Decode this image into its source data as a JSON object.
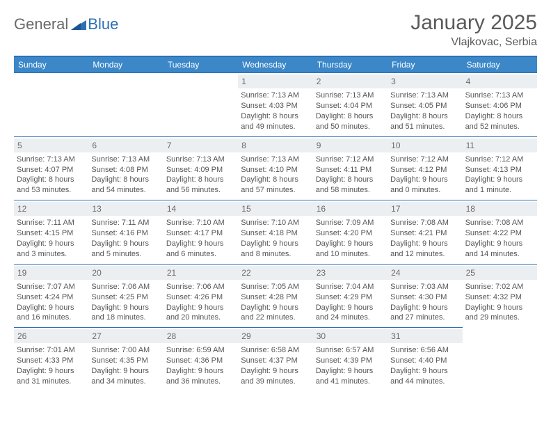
{
  "logo": {
    "general": "General",
    "blue": "Blue"
  },
  "title": "January 2025",
  "location": "Vlajkovac, Serbia",
  "colors": {
    "header_bar": "#3b87c8",
    "rule": "#2e6fb5",
    "daynum_bg": "#eceff1",
    "text": "#555555",
    "title_text": "#5a5a5a"
  },
  "day_headers": [
    "Sunday",
    "Monday",
    "Tuesday",
    "Wednesday",
    "Thursday",
    "Friday",
    "Saturday"
  ],
  "leading_blanks": 3,
  "days": [
    {
      "n": "1",
      "sunrise": "Sunrise: 7:13 AM",
      "sunset": "Sunset: 4:03 PM",
      "dl1": "Daylight: 8 hours",
      "dl2": "and 49 minutes."
    },
    {
      "n": "2",
      "sunrise": "Sunrise: 7:13 AM",
      "sunset": "Sunset: 4:04 PM",
      "dl1": "Daylight: 8 hours",
      "dl2": "and 50 minutes."
    },
    {
      "n": "3",
      "sunrise": "Sunrise: 7:13 AM",
      "sunset": "Sunset: 4:05 PM",
      "dl1": "Daylight: 8 hours",
      "dl2": "and 51 minutes."
    },
    {
      "n": "4",
      "sunrise": "Sunrise: 7:13 AM",
      "sunset": "Sunset: 4:06 PM",
      "dl1": "Daylight: 8 hours",
      "dl2": "and 52 minutes."
    },
    {
      "n": "5",
      "sunrise": "Sunrise: 7:13 AM",
      "sunset": "Sunset: 4:07 PM",
      "dl1": "Daylight: 8 hours",
      "dl2": "and 53 minutes."
    },
    {
      "n": "6",
      "sunrise": "Sunrise: 7:13 AM",
      "sunset": "Sunset: 4:08 PM",
      "dl1": "Daylight: 8 hours",
      "dl2": "and 54 minutes."
    },
    {
      "n": "7",
      "sunrise": "Sunrise: 7:13 AM",
      "sunset": "Sunset: 4:09 PM",
      "dl1": "Daylight: 8 hours",
      "dl2": "and 56 minutes."
    },
    {
      "n": "8",
      "sunrise": "Sunrise: 7:13 AM",
      "sunset": "Sunset: 4:10 PM",
      "dl1": "Daylight: 8 hours",
      "dl2": "and 57 minutes."
    },
    {
      "n": "9",
      "sunrise": "Sunrise: 7:12 AM",
      "sunset": "Sunset: 4:11 PM",
      "dl1": "Daylight: 8 hours",
      "dl2": "and 58 minutes."
    },
    {
      "n": "10",
      "sunrise": "Sunrise: 7:12 AM",
      "sunset": "Sunset: 4:12 PM",
      "dl1": "Daylight: 9 hours",
      "dl2": "and 0 minutes."
    },
    {
      "n": "11",
      "sunrise": "Sunrise: 7:12 AM",
      "sunset": "Sunset: 4:13 PM",
      "dl1": "Daylight: 9 hours",
      "dl2": "and 1 minute."
    },
    {
      "n": "12",
      "sunrise": "Sunrise: 7:11 AM",
      "sunset": "Sunset: 4:15 PM",
      "dl1": "Daylight: 9 hours",
      "dl2": "and 3 minutes."
    },
    {
      "n": "13",
      "sunrise": "Sunrise: 7:11 AM",
      "sunset": "Sunset: 4:16 PM",
      "dl1": "Daylight: 9 hours",
      "dl2": "and 5 minutes."
    },
    {
      "n": "14",
      "sunrise": "Sunrise: 7:10 AM",
      "sunset": "Sunset: 4:17 PM",
      "dl1": "Daylight: 9 hours",
      "dl2": "and 6 minutes."
    },
    {
      "n": "15",
      "sunrise": "Sunrise: 7:10 AM",
      "sunset": "Sunset: 4:18 PM",
      "dl1": "Daylight: 9 hours",
      "dl2": "and 8 minutes."
    },
    {
      "n": "16",
      "sunrise": "Sunrise: 7:09 AM",
      "sunset": "Sunset: 4:20 PM",
      "dl1": "Daylight: 9 hours",
      "dl2": "and 10 minutes."
    },
    {
      "n": "17",
      "sunrise": "Sunrise: 7:08 AM",
      "sunset": "Sunset: 4:21 PM",
      "dl1": "Daylight: 9 hours",
      "dl2": "and 12 minutes."
    },
    {
      "n": "18",
      "sunrise": "Sunrise: 7:08 AM",
      "sunset": "Sunset: 4:22 PM",
      "dl1": "Daylight: 9 hours",
      "dl2": "and 14 minutes."
    },
    {
      "n": "19",
      "sunrise": "Sunrise: 7:07 AM",
      "sunset": "Sunset: 4:24 PM",
      "dl1": "Daylight: 9 hours",
      "dl2": "and 16 minutes."
    },
    {
      "n": "20",
      "sunrise": "Sunrise: 7:06 AM",
      "sunset": "Sunset: 4:25 PM",
      "dl1": "Daylight: 9 hours",
      "dl2": "and 18 minutes."
    },
    {
      "n": "21",
      "sunrise": "Sunrise: 7:06 AM",
      "sunset": "Sunset: 4:26 PM",
      "dl1": "Daylight: 9 hours",
      "dl2": "and 20 minutes."
    },
    {
      "n": "22",
      "sunrise": "Sunrise: 7:05 AM",
      "sunset": "Sunset: 4:28 PM",
      "dl1": "Daylight: 9 hours",
      "dl2": "and 22 minutes."
    },
    {
      "n": "23",
      "sunrise": "Sunrise: 7:04 AM",
      "sunset": "Sunset: 4:29 PM",
      "dl1": "Daylight: 9 hours",
      "dl2": "and 24 minutes."
    },
    {
      "n": "24",
      "sunrise": "Sunrise: 7:03 AM",
      "sunset": "Sunset: 4:30 PM",
      "dl1": "Daylight: 9 hours",
      "dl2": "and 27 minutes."
    },
    {
      "n": "25",
      "sunrise": "Sunrise: 7:02 AM",
      "sunset": "Sunset: 4:32 PM",
      "dl1": "Daylight: 9 hours",
      "dl2": "and 29 minutes."
    },
    {
      "n": "26",
      "sunrise": "Sunrise: 7:01 AM",
      "sunset": "Sunset: 4:33 PM",
      "dl1": "Daylight: 9 hours",
      "dl2": "and 31 minutes."
    },
    {
      "n": "27",
      "sunrise": "Sunrise: 7:00 AM",
      "sunset": "Sunset: 4:35 PM",
      "dl1": "Daylight: 9 hours",
      "dl2": "and 34 minutes."
    },
    {
      "n": "28",
      "sunrise": "Sunrise: 6:59 AM",
      "sunset": "Sunset: 4:36 PM",
      "dl1": "Daylight: 9 hours",
      "dl2": "and 36 minutes."
    },
    {
      "n": "29",
      "sunrise": "Sunrise: 6:58 AM",
      "sunset": "Sunset: 4:37 PM",
      "dl1": "Daylight: 9 hours",
      "dl2": "and 39 minutes."
    },
    {
      "n": "30",
      "sunrise": "Sunrise: 6:57 AM",
      "sunset": "Sunset: 4:39 PM",
      "dl1": "Daylight: 9 hours",
      "dl2": "and 41 minutes."
    },
    {
      "n": "31",
      "sunrise": "Sunrise: 6:56 AM",
      "sunset": "Sunset: 4:40 PM",
      "dl1": "Daylight: 9 hours",
      "dl2": "and 44 minutes."
    }
  ]
}
